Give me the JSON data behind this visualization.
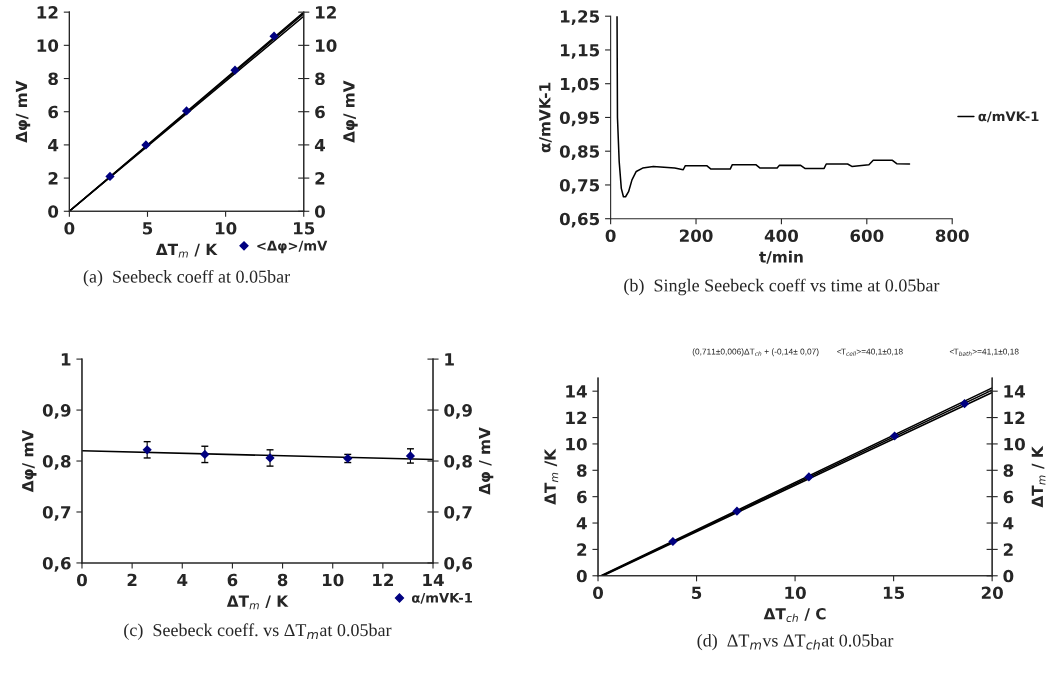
{
  "chart_data": [
    {
      "type": "scatter",
      "title": "(a)  Seebeck coeff at 0.05bar",
      "xlabel": "ΔT$_{m}$ / K",
      "ylabel": "Δφ/ mV",
      "y2label": "Δφ/ mV",
      "xlim": [
        0,
        15
      ],
      "xticks": [
        0,
        5,
        10,
        15
      ],
      "ylim": [
        0,
        12
      ],
      "yticks": [
        0,
        2,
        4,
        6,
        8,
        10,
        12
      ],
      "y2lim": [
        0,
        12
      ],
      "y2ticks": [
        0,
        2,
        4,
        6,
        8,
        10,
        12
      ],
      "legend": "bottom right",
      "series": [
        {
          "type": "line",
          "color": "#000000",
          "x": [
            0,
            15
          ],
          "values": [
            0,
            12.0
          ]
        },
        {
          "type": "line",
          "color": "#000000",
          "x": [
            0,
            15
          ],
          "values": [
            0,
            11.9
          ]
        },
        {
          "type": "line",
          "color": "#000000",
          "x": [
            0,
            15
          ],
          "values": [
            0,
            11.75
          ]
        },
        {
          "name": "<Δφ>/mV",
          "color": "#000080",
          "marker": "diamond",
          "x": [
            2.6,
            4.9,
            7.5,
            10.6,
            13.1
          ],
          "values": [
            2.1,
            4.0,
            6.05,
            8.5,
            10.55
          ]
        }
      ]
    },
    {
      "type": "line",
      "title": "(b)  Single Seebeck coeff vs time at 0.05bar",
      "xlabel": "t/min",
      "ylabel": "α/mVK-1",
      "xlim": [
        0,
        800
      ],
      "xticks": [
        0,
        200,
        400,
        600,
        800
      ],
      "ylim": [
        0.65,
        1.25
      ],
      "yticks": [
        {
          "value": 0.65,
          "label": "0,65"
        },
        {
          "value": 0.75,
          "label": "0,75"
        },
        {
          "value": 0.85,
          "label": "0,85"
        },
        {
          "value": 0.95,
          "label": "0,95"
        },
        {
          "value": 1.05,
          "label": "1,05"
        },
        {
          "value": 1.15,
          "label": "1,15"
        },
        {
          "value": 1.25,
          "label": "1,25"
        }
      ],
      "legend": "right",
      "series": [
        {
          "name": "α/mVK-1",
          "color": "#000000",
          "x": [
            15,
            16,
            20,
            25,
            30,
            35,
            42,
            50,
            60,
            75,
            100,
            150,
            170,
            175,
            225,
            235,
            280,
            285,
            340,
            350,
            390,
            395,
            445,
            455,
            500,
            505,
            555,
            565,
            605,
            615,
            660,
            670,
            700
          ],
          "values": [
            1.25,
            0.95,
            0.82,
            0.74,
            0.715,
            0.715,
            0.73,
            0.765,
            0.79,
            0.8,
            0.805,
            0.8,
            0.795,
            0.807,
            0.807,
            0.797,
            0.797,
            0.81,
            0.81,
            0.8,
            0.8,
            0.808,
            0.808,
            0.799,
            0.799,
            0.812,
            0.812,
            0.805,
            0.81,
            0.823,
            0.823,
            0.813,
            0.812
          ]
        }
      ]
    },
    {
      "type": "scatter",
      "title": "(c)  Seebeck coeff. vs ΔT$_{m}$at 0.05bar",
      "xlabel": "ΔT$_{m}$ / K",
      "ylabel": "Δφ/ mV",
      "y2label": "Δφ / mV",
      "xlim": [
        0,
        14
      ],
      "xticks": [
        0,
        2,
        4,
        6,
        8,
        10,
        12,
        14
      ],
      "ylim": [
        0.6,
        1
      ],
      "yticks": [
        {
          "value": 0.6,
          "label": "0,6"
        },
        {
          "value": 0.7,
          "label": "0,7"
        },
        {
          "value": 0.8,
          "label": "0,8"
        },
        {
          "value": 0.9,
          "label": "0,9"
        },
        1
      ],
      "y2lim": [
        0.6,
        1
      ],
      "y2ticks": [
        {
          "value": 0.6,
          "label": "0,6"
        },
        {
          "value": 0.7,
          "label": "0,7"
        },
        {
          "value": 0.8,
          "label": "0,8"
        },
        {
          "value": 0.9,
          "label": "0,9"
        },
        1
      ],
      "legend": "bottom right",
      "series": [
        {
          "type": "line",
          "color": "#000000",
          "x": [
            0,
            14
          ],
          "values": [
            0.82,
            0.803
          ]
        },
        {
          "name": "α/mVK-1",
          "color": "#000080",
          "marker": "diamond",
          "x": [
            2.6,
            4.9,
            7.5,
            10.6,
            13.1
          ],
          "values": [
            0.822,
            0.813,
            0.806,
            0.805,
            0.81
          ],
          "errors": [
            0.016,
            0.016,
            0.016,
            0.008,
            0.014
          ]
        }
      ]
    },
    {
      "type": "scatter",
      "title": "(d)  ΔT$_{m}$vs ΔT$_{ch}$at 0.05bar",
      "xlabel": "ΔT$_{ch}$ / C",
      "ylabel": "ΔT$_{m}$ /K",
      "y2label": "ΔT$_{m}$ / K",
      "xlim": [
        0,
        20
      ],
      "xticks": [
        0,
        5,
        10,
        15,
        20
      ],
      "ylim": [
        0,
        15
      ],
      "yticks": [
        0,
        2,
        4,
        6,
        8,
        10,
        12,
        14
      ],
      "y2lim": [
        0,
        15
      ],
      "y2ticks": [
        0,
        2,
        4,
        6,
        8,
        10,
        12,
        14
      ],
      "annotations": [
        "(0,711±0,006)ΔT$_{ch}$ + (-0,14± 0,07)",
        "<T$_{cell}$>=40,1±0,18",
        "<T$_{bath}$>=41,1±0,18"
      ],
      "series": [
        {
          "type": "line",
          "color": "#000000",
          "x": [
            0.15,
            20
          ],
          "values": [
            0,
            14.25
          ]
        },
        {
          "type": "line",
          "color": "#000000",
          "x": [
            0.2,
            20
          ],
          "values": [
            0,
            14.08
          ]
        },
        {
          "type": "line",
          "color": "#000000",
          "x": [
            0.25,
            20
          ],
          "values": [
            0,
            13.9
          ]
        },
        {
          "color": "#000080",
          "marker": "diamond",
          "x": [
            3.8,
            7.05,
            10.7,
            15.05,
            18.6
          ],
          "values": [
            2.6,
            4.9,
            7.5,
            10.6,
            13.05
          ]
        }
      ]
    }
  ]
}
